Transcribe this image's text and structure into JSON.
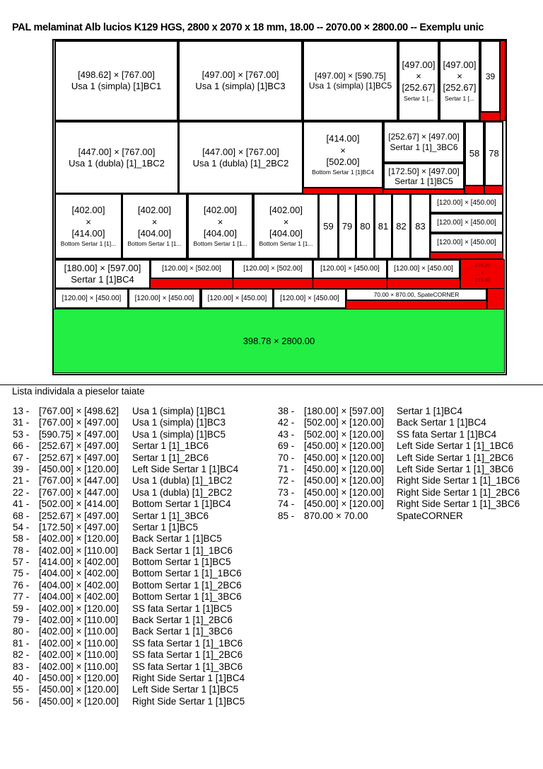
{
  "title": "PAL melaminat Alb lucios K129 HGS, 2800 x 2070 x 18 mm, 18.00 -- 2070.00 × 2800.00 -- Exemplu unic",
  "layout": {
    "pieces": [
      {
        "lines": [
          "[498.62] × [767.00]",
          "Usa 1 (simpla) [1]BC1"
        ]
      },
      {
        "lines": [
          "[497.00] × [767.00]",
          "Usa 1 (simpla) [1]BC3"
        ]
      },
      {
        "lines": [
          "[497.00] × [590.75]",
          "Usa 1 (simpla) [1]BC5"
        ]
      },
      {
        "lines": [
          "[497.00]",
          "×",
          "[252.67]"
        ],
        "small": "Sertar 1 [..."
      },
      {
        "lines": [
          "[497.00]",
          "×",
          "[252.67]"
        ],
        "small": "Sertar 1 [..."
      },
      {
        "lines": [
          "39"
        ]
      },
      {
        "lines": [
          "[447.00] × [767.00]",
          "Usa 1 (dubla) [1]_1BC2"
        ]
      },
      {
        "lines": [
          "[447.00] × [767.00]",
          "Usa 1 (dubla) [1]_2BC2"
        ]
      },
      {
        "lines": [
          "[414.00]",
          "×",
          "[502.00]"
        ],
        "small": "Bottom Sertar 1 [1]BC4"
      },
      {
        "lines": [
          "[252.67] × [497.00]",
          "Sertar 1 [1]_3BC6"
        ]
      },
      {
        "lines": [
          "[172.50] × [497.00]",
          "Sertar 1 [1]BC5"
        ]
      },
      {
        "lines": [
          "58"
        ]
      },
      {
        "lines": [
          "78"
        ]
      },
      {
        "lines": [
          "[402.00]",
          "×",
          "[414.00]"
        ],
        "small": "Bottom Sertar 1 [1]..."
      },
      {
        "lines": [
          "[402.00]",
          "×",
          "[404.00]"
        ],
        "small": "Bottom Sertar 1 [1..."
      },
      {
        "lines": [
          "[402.00]",
          "×",
          "[404.00]"
        ],
        "small": "Bottom Sertar 1 [1..."
      },
      {
        "lines": [
          "[402.00]",
          "×",
          "[404.00]"
        ],
        "small": "Bottom Sertar 1 [1..."
      },
      {
        "lines": [
          "59"
        ]
      },
      {
        "lines": [
          "79"
        ]
      },
      {
        "lines": [
          "80"
        ]
      },
      {
        "lines": [
          "81"
        ]
      },
      {
        "lines": [
          "82"
        ]
      },
      {
        "lines": [
          "83"
        ]
      },
      {
        "lines": [
          "[120.00] × [450.00]"
        ]
      },
      {
        "lines": [
          "[120.00] × [450.00]"
        ]
      },
      {
        "lines": [
          "[120.00] × [450.00]"
        ]
      },
      {
        "lines": [
          "[180.00] × [597.00]",
          "Sertar 1 [1]BC4"
        ]
      },
      {
        "lines": [
          "[120.00] × [502.00]"
        ]
      },
      {
        "lines": [
          "[120.00] × [502.00]"
        ]
      },
      {
        "lines": [
          "[120.00] × [450.00]"
        ]
      },
      {
        "lines": [
          "[120.00] × [450.00]"
        ]
      },
      {
        "lines": [
          "[120.00] × [450.00]"
        ]
      },
      {
        "lines": [
          "[120.00] × [450.00]"
        ]
      },
      {
        "lines": [
          "[120.00] × [450.00]"
        ]
      },
      {
        "lines": [
          "[120.00] × [450.00]"
        ]
      },
      {
        "lines": [
          "70.00 × 870.00, SpateCORNER"
        ]
      }
    ],
    "waste_label": [
      "179.20",
      "×",
      "273.00"
    ],
    "remaining_label": "398.78 × 2800.00",
    "colors": {
      "waste": "#f20000",
      "remaining": "#22ee44",
      "piece": "#ffffff"
    }
  },
  "list": {
    "title": "Lista individala a pieselor taiate",
    "columns": [
      [
        {
          "id": "13 -",
          "dims": "[767.00] × [498.62]",
          "name": "Usa 1 (simpla) [1]BC1"
        },
        {
          "id": "31 -",
          "dims": "[767.00] × [497.00]",
          "name": "Usa 1 (simpla) [1]BC3"
        },
        {
          "id": "53 -",
          "dims": "[590.75] × [497.00]",
          "name": "Usa 1 (simpla) [1]BC5"
        },
        {
          "id": "66 -",
          "dims": "[252.67] × [497.00]",
          "name": "Sertar 1 [1]_1BC6"
        },
        {
          "id": "67 -",
          "dims": "[252.67] × [497.00]",
          "name": "Sertar 1 [1]_2BC6"
        },
        {
          "id": "39 -",
          "dims": "[450.00] × [120.00]",
          "name": "Left Side Sertar 1 [1]BC4"
        },
        {
          "id": "21 -",
          "dims": "[767.00] × [447.00]",
          "name": "Usa 1 (dubla) [1]_1BC2"
        },
        {
          "id": "22 -",
          "dims": "[767.00] × [447.00]",
          "name": "Usa 1 (dubla) [1]_2BC2"
        },
        {
          "id": "41 -",
          "dims": "[502.00] × [414.00]",
          "name": "Bottom Sertar 1 [1]BC4"
        },
        {
          "id": "68 -",
          "dims": "[252.67] × [497.00]",
          "name": "Sertar 1 [1]_3BC6"
        },
        {
          "id": "54 -",
          "dims": "[172.50] × [497.00]",
          "name": "Sertar 1 [1]BC5"
        },
        {
          "id": "58 -",
          "dims": "[402.00] × [120.00]",
          "name": "Back Sertar 1 [1]BC5"
        },
        {
          "id": "78 -",
          "dims": "[402.00] × [110.00]",
          "name": "Back Sertar 1 [1]_1BC6"
        },
        {
          "id": "57 -",
          "dims": "[414.00] × [402.00]",
          "name": "Bottom Sertar 1 [1]BC5"
        },
        {
          "id": "75 -",
          "dims": "[404.00] × [402.00]",
          "name": "Bottom Sertar 1 [1]_1BC6"
        },
        {
          "id": "76 -",
          "dims": "[404.00] × [402.00]",
          "name": "Bottom Sertar 1 [1]_2BC6"
        },
        {
          "id": "77 -",
          "dims": "[404.00] × [402.00]",
          "name": "Bottom Sertar 1 [1]_3BC6"
        },
        {
          "id": "59 -",
          "dims": "[402.00] × [120.00]",
          "name": "SS fata Sertar 1 [1]BC5"
        },
        {
          "id": "79 -",
          "dims": "[402.00] × [110.00]",
          "name": "Back Sertar 1 [1]_2BC6"
        },
        {
          "id": "80 -",
          "dims": "[402.00] × [110.00]",
          "name": "Back Sertar 1 [1]_3BC6"
        },
        {
          "id": "81 -",
          "dims": "[402.00] × [110.00]",
          "name": "SS fata Sertar 1 [1]_1BC6"
        },
        {
          "id": "82 -",
          "dims": "[402.00] × [110.00]",
          "name": "SS fata Sertar 1 [1]_2BC6"
        },
        {
          "id": "83 -",
          "dims": "[402.00] × [110.00]",
          "name": "SS fata Sertar 1 [1]_3BC6"
        },
        {
          "id": "40 -",
          "dims": "[450.00] × [120.00]",
          "name": "Right Side Sertar 1 [1]BC4"
        },
        {
          "id": "55 -",
          "dims": "[450.00] × [120.00]",
          "name": "Left Side Sertar 1 [1]BC5"
        },
        {
          "id": "56 -",
          "dims": "[450.00] × [120.00]",
          "name": "Right Side Sertar 1 [1]BC5"
        }
      ],
      [
        {
          "id": "38 -",
          "dims": "[180.00] × [597.00]",
          "name": "Sertar 1 [1]BC4"
        },
        {
          "id": "42 -",
          "dims": "[502.00] × [120.00]",
          "name": "Back Sertar 1 [1]BC4"
        },
        {
          "id": "43 -",
          "dims": "[502.00] × [120.00]",
          "name": "SS fata Sertar 1 [1]BC4"
        },
        {
          "id": "69 -",
          "dims": "[450.00] × [120.00]",
          "name": "Left Side Sertar 1 [1]_1BC6"
        },
        {
          "id": "70 -",
          "dims": "[450.00] × [120.00]",
          "name": "Left Side Sertar 1 [1]_2BC6"
        },
        {
          "id": "71 -",
          "dims": "[450.00] × [120.00]",
          "name": "Left Side Sertar 1 [1]_3BC6"
        },
        {
          "id": "72 -",
          "dims": "[450.00] × [120.00]",
          "name": "Right Side Sertar 1 [1]_1BC6"
        },
        {
          "id": "73 -",
          "dims": "[450.00] × [120.00]",
          "name": "Right Side Sertar 1 [1]_2BC6"
        },
        {
          "id": "74 -",
          "dims": "[450.00] × [120.00]",
          "name": "Right Side Sertar 1 [1]_3BC6"
        },
        {
          "id": "85 -",
          "dims": "870.00 × 70.00",
          "name": "SpateCORNER"
        }
      ]
    ]
  }
}
